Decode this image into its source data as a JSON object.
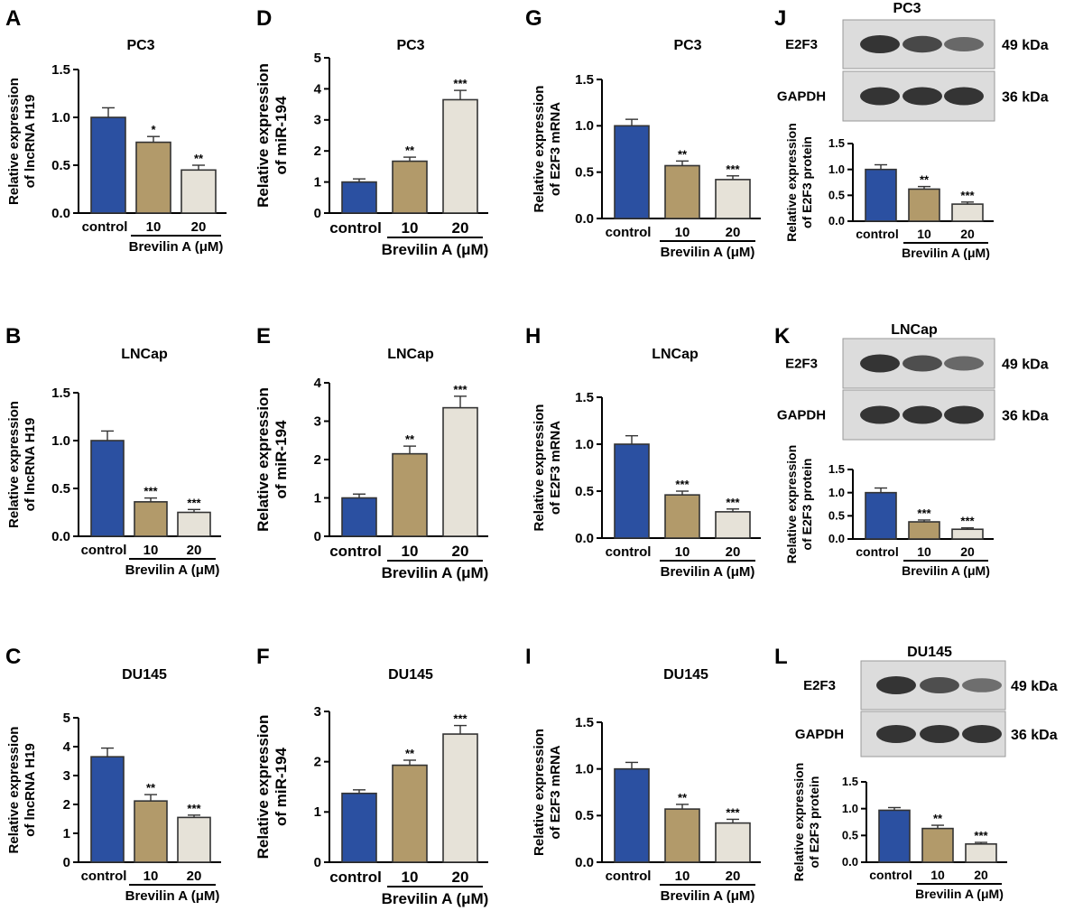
{
  "colors": {
    "control": "#2b50a1",
    "dose10": "#b29a6a",
    "dose20": "#e6e2d8",
    "axis": "#000000",
    "blot_bg": "#dcdcdc",
    "band": "#2a2a2a"
  },
  "chart_data": [
    {
      "panel": "A",
      "type": "bar",
      "title": "PC3",
      "ylabel": [
        "Relative expression",
        "of lncRNA H19"
      ],
      "ylim": [
        0,
        1.5
      ],
      "yticks": [
        "0.0",
        "0.5",
        "1.0",
        "1.5"
      ],
      "categories": [
        "control",
        "10",
        "20"
      ],
      "group_label": "Brevilin A (μM)",
      "values": [
        1.0,
        0.74,
        0.45
      ],
      "errors": [
        0.1,
        0.06,
        0.05
      ],
      "significance": [
        "",
        "*",
        "**"
      ]
    },
    {
      "panel": "B",
      "type": "bar",
      "title": "LNCap",
      "ylabel": [
        "Relative expression",
        "of lncRNA H19"
      ],
      "ylim": [
        0,
        1.5
      ],
      "yticks": [
        "0.0",
        "0.5",
        "1.0",
        "1.5"
      ],
      "categories": [
        "control",
        "10",
        "20"
      ],
      "group_label": "Brevilin A (μM)",
      "values": [
        1.0,
        0.36,
        0.25
      ],
      "errors": [
        0.1,
        0.04,
        0.03
      ],
      "significance": [
        "",
        "***",
        "***"
      ]
    },
    {
      "panel": "C",
      "type": "bar",
      "title": "DU145",
      "ylabel": [
        "Relative expression",
        "of lncRNA H19"
      ],
      "ylim": [
        0,
        5
      ],
      "yticks": [
        "0",
        "1",
        "2",
        "3",
        "4",
        "5"
      ],
      "categories": [
        "control",
        "10",
        "20"
      ],
      "group_label": "Brevilin A (μM)",
      "values": [
        3.65,
        2.12,
        1.55
      ],
      "errors": [
        0.3,
        0.22,
        0.08
      ],
      "significance": [
        "",
        "**",
        "***"
      ]
    },
    {
      "panel": "D",
      "type": "bar",
      "title": "PC3",
      "ylabel": [
        "Relative expression",
        "of miR-194"
      ],
      "ylim": [
        0,
        5
      ],
      "yticks": [
        "0",
        "1",
        "2",
        "3",
        "4",
        "5"
      ],
      "categories": [
        "control",
        "10",
        "20"
      ],
      "group_label": "Brevilin A (μM)",
      "values": [
        1.0,
        1.67,
        3.65
      ],
      "errors": [
        0.1,
        0.13,
        0.3
      ],
      "significance": [
        "",
        "**",
        "***"
      ]
    },
    {
      "panel": "E",
      "type": "bar",
      "title": "LNCap",
      "ylabel": [
        "Relative expression",
        "of miR-194"
      ],
      "ylim": [
        0,
        4
      ],
      "yticks": [
        "0",
        "1",
        "2",
        "3",
        "4"
      ],
      "categories": [
        "control",
        "10",
        "20"
      ],
      "group_label": "Brevilin A (μM)",
      "values": [
        1.0,
        2.15,
        3.35
      ],
      "errors": [
        0.1,
        0.2,
        0.3
      ],
      "significance": [
        "",
        "**",
        "***"
      ]
    },
    {
      "panel": "F",
      "type": "bar",
      "title": "DU145",
      "ylabel": [
        "Relative expression",
        "of miR-194"
      ],
      "ylim": [
        0,
        3
      ],
      "yticks": [
        "0",
        "1",
        "2",
        "3"
      ],
      "categories": [
        "control",
        "10",
        "20"
      ],
      "group_label": "Brevilin A (μM)",
      "values": [
        1.37,
        1.93,
        2.55
      ],
      "errors": [
        0.07,
        0.1,
        0.17
      ],
      "significance": [
        "",
        "**",
        "***"
      ]
    },
    {
      "panel": "G",
      "type": "bar",
      "title": "PC3",
      "ylabel": [
        "Relative expression",
        "of E2F3 mRNA"
      ],
      "ylim": [
        0,
        1.5
      ],
      "yticks": [
        "0.0",
        "0.5",
        "1.0",
        "1.5"
      ],
      "categories": [
        "control",
        "10",
        "20"
      ],
      "group_label": "Brevilin A (μM)",
      "values": [
        1.0,
        0.57,
        0.42
      ],
      "errors": [
        0.07,
        0.05,
        0.04
      ],
      "significance": [
        "",
        "**",
        "***"
      ]
    },
    {
      "panel": "H",
      "type": "bar",
      "title": "LNCap",
      "ylabel": [
        "Relative expression",
        "of E2F3 mRNA"
      ],
      "ylim": [
        0,
        1.5
      ],
      "yticks": [
        "0.0",
        "0.5",
        "1.0",
        "1.5"
      ],
      "categories": [
        "control",
        "10",
        "20"
      ],
      "group_label": "Brevilin A (μM)",
      "values": [
        1.0,
        0.46,
        0.28
      ],
      "errors": [
        0.09,
        0.04,
        0.03
      ],
      "significance": [
        "",
        "***",
        "***"
      ]
    },
    {
      "panel": "I",
      "type": "bar",
      "title": "DU145",
      "ylabel": [
        "Relative expression",
        "of E2F3 mRNA"
      ],
      "ylim": [
        0,
        1.5
      ],
      "yticks": [
        "0.0",
        "0.5",
        "1.0",
        "1.5"
      ],
      "categories": [
        "control",
        "10",
        "20"
      ],
      "group_label": "Brevilin A (μM)",
      "values": [
        1.0,
        0.57,
        0.42
      ],
      "errors": [
        0.07,
        0.05,
        0.04
      ],
      "significance": [
        "",
        "**",
        "***"
      ]
    },
    {
      "panel": "J",
      "type": "bar",
      "title": "",
      "ylabel": [
        "Relative expression",
        "of E2F3 protein"
      ],
      "ylim": [
        0,
        1.5
      ],
      "yticks": [
        "0.0",
        "0.5",
        "1.0",
        "1.5"
      ],
      "categories": [
        "control",
        "10",
        "20"
      ],
      "group_label": "Brevilin A (μM)",
      "values": [
        1.0,
        0.62,
        0.33
      ],
      "errors": [
        0.09,
        0.05,
        0.04
      ],
      "significance": [
        "",
        "**",
        "***"
      ]
    },
    {
      "panel": "K",
      "type": "bar",
      "title": "",
      "ylabel": [
        "Relative expression",
        "of E2F3 protein"
      ],
      "ylim": [
        0,
        1.5
      ],
      "yticks": [
        "0.0",
        "0.5",
        "1.0",
        "1.5"
      ],
      "categories": [
        "control",
        "10",
        "20"
      ],
      "group_label": "Brevilin A (μM)",
      "values": [
        1.0,
        0.37,
        0.21
      ],
      "errors": [
        0.1,
        0.04,
        0.03
      ],
      "significance": [
        "",
        "***",
        "***"
      ]
    },
    {
      "panel": "L",
      "type": "bar",
      "title": "",
      "ylabel": [
        "Relative expression",
        "of E2F3 protein"
      ],
      "ylim": [
        0,
        1.5
      ],
      "yticks": [
        "0.0",
        "0.5",
        "1.0",
        "1.5"
      ],
      "categories": [
        "control",
        "10",
        "20"
      ],
      "group_label": "Brevilin A (μM)",
      "values": [
        0.97,
        0.63,
        0.34
      ],
      "errors": [
        0.05,
        0.06,
        0.03
      ],
      "significance": [
        "",
        "**",
        "***"
      ]
    }
  ],
  "blots": [
    {
      "panel": "J",
      "cell_line": "PC3",
      "rows": [
        {
          "label": "E2F3",
          "kda": "49 kDa",
          "intensities": [
            1.0,
            0.8,
            0.5
          ]
        },
        {
          "label": "GAPDH",
          "kda": "36 kDa",
          "intensities": [
            1.0,
            1.0,
            1.0
          ]
        }
      ]
    },
    {
      "panel": "K",
      "cell_line": "LNCap",
      "rows": [
        {
          "label": "E2F3",
          "kda": "49 kDa",
          "intensities": [
            1.0,
            0.75,
            0.5
          ]
        },
        {
          "label": "GAPDH",
          "kda": "36 kDa",
          "intensities": [
            1.0,
            1.0,
            1.0
          ]
        }
      ]
    },
    {
      "panel": "L",
      "cell_line": "DU145",
      "rows": [
        {
          "label": "E2F3",
          "kda": "49 kDa",
          "intensities": [
            1.0,
            0.75,
            0.45
          ]
        },
        {
          "label": "GAPDH",
          "kda": "36 kDa",
          "intensities": [
            1.0,
            1.0,
            1.0
          ]
        }
      ]
    }
  ]
}
